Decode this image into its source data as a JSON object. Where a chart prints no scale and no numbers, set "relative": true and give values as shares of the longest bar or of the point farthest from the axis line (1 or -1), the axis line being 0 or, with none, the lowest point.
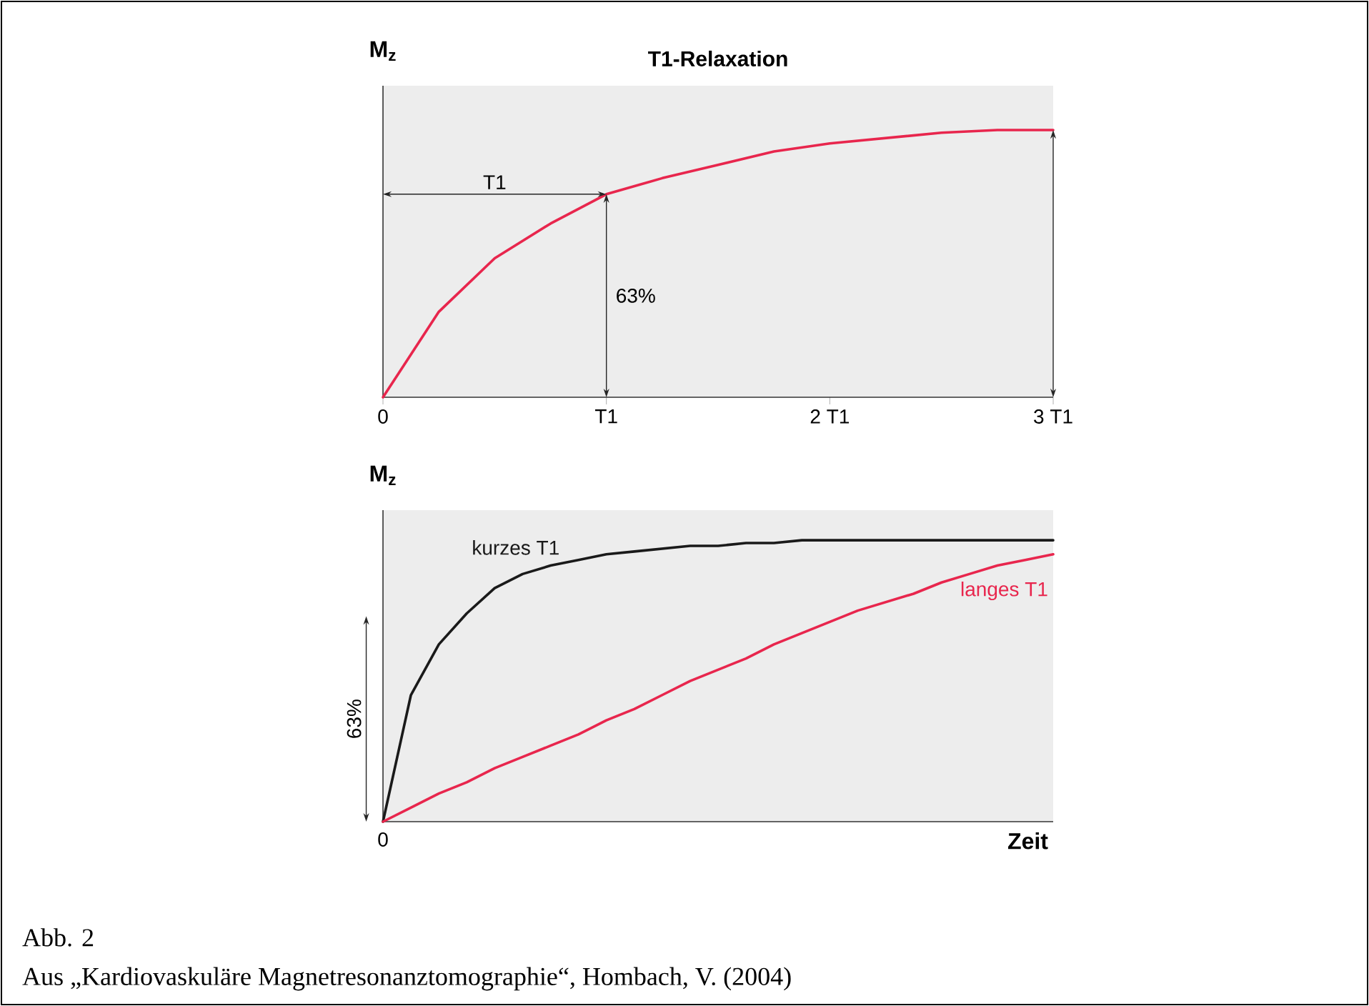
{
  "chart_data": [
    {
      "type": "line",
      "title": "T1-Relaxation",
      "ylabel": "M$_{z}$",
      "relative": true,
      "categories": [
        "0",
        null,
        null,
        null,
        "T1",
        null,
        null,
        null,
        "2 T1",
        null,
        null,
        null,
        "3 T1"
      ],
      "series": [
        {
          "color": "#e8264d",
          "values": [
            0,
            0.32,
            0.52,
            0.65,
            0.76,
            0.82,
            0.87,
            0.92,
            0.95,
            0.97,
            0.99,
            1,
            1
          ]
        }
      ],
      "annotations": [
        "T1",
        "63%"
      ]
    },
    {
      "type": "line",
      "ylabel": "M$_{z}$",
      "xlabel": "Zeit",
      "relative": true,
      "categories": [
        null,
        null,
        null,
        null,
        null,
        null,
        null,
        null,
        null,
        null,
        null,
        null,
        null,
        null,
        null,
        null,
        null,
        null,
        null,
        null,
        null,
        null,
        null,
        null,
        null
      ],
      "series": [
        {
          "name": "kurzes T1",
          "color": "#1a1a1a",
          "values": [
            0,
            0.45,
            0.63,
            0.74,
            0.83,
            0.88,
            0.91,
            0.93,
            0.95,
            0.96,
            0.97,
            0.98,
            0.98,
            0.99,
            0.99,
            1,
            1,
            1,
            1,
            1,
            1,
            1,
            1,
            1,
            1
          ]
        },
        {
          "name": "langes T1",
          "color": "#e8264d",
          "values": [
            0,
            0.05,
            0.1,
            0.14,
            0.19,
            0.23,
            0.27,
            0.31,
            0.36,
            0.4,
            0.45,
            0.5,
            0.54,
            0.58,
            0.63,
            0.67,
            0.71,
            0.75,
            0.78,
            0.81,
            0.85,
            0.88,
            0.91,
            0.93,
            0.95
          ]
        }
      ],
      "annotations": [
        "63%",
        "0",
        "Abb. 2",
        "Aus „Kardiovaskuläre Magnetresonanztomographie“, Hombach, V. (2004)"
      ]
    }
  ]
}
